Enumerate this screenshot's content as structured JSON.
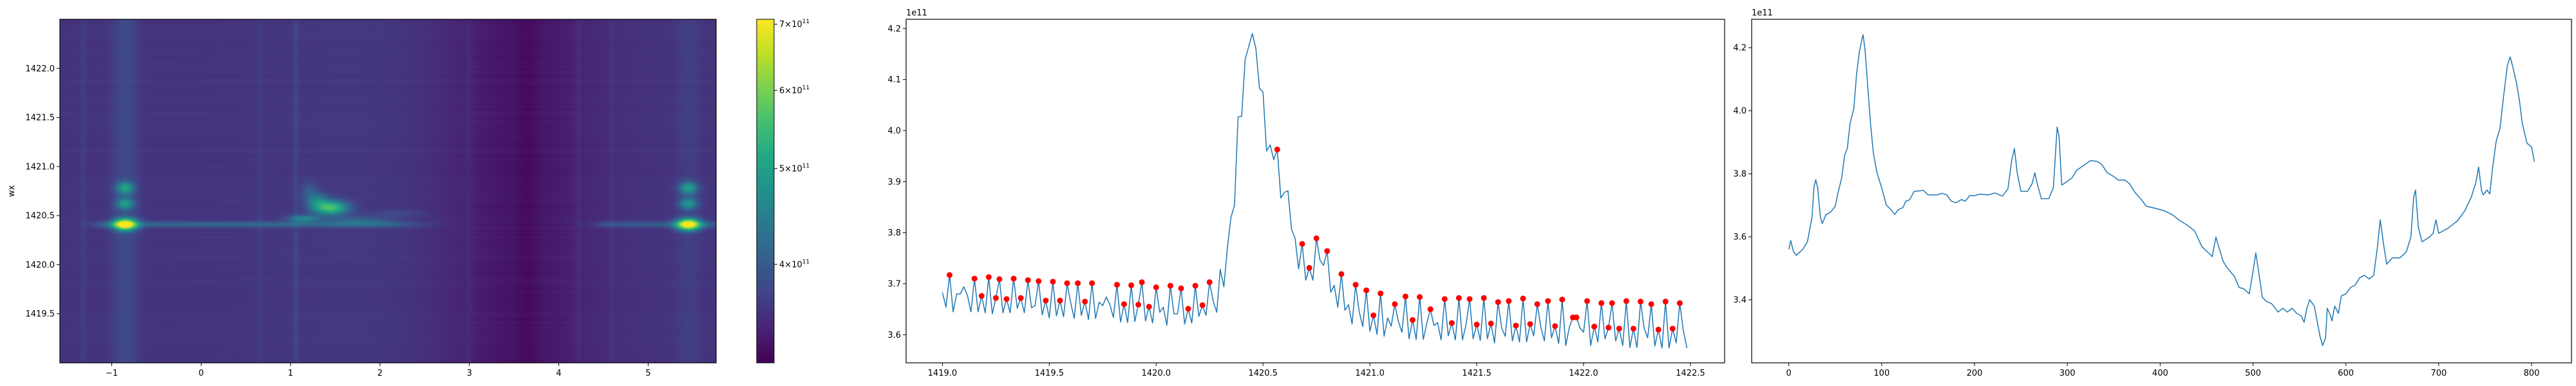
{
  "chart_data": [
    {
      "type": "heatmap",
      "ylabel": "wx",
      "xlabel": "",
      "xlim": [
        -1.58,
        5.76
      ],
      "ylim": [
        1419.0,
        1422.5
      ],
      "xticks": [
        {
          "v": -1,
          "label": "−1"
        },
        {
          "v": 0,
          "label": "0"
        },
        {
          "v": 1,
          "label": "1"
        },
        {
          "v": 2,
          "label": "2"
        },
        {
          "v": 3,
          "label": "3"
        },
        {
          "v": 4,
          "label": "4"
        },
        {
          "v": 5,
          "label": "5"
        }
      ],
      "yticks": [
        {
          "v": 1419.5,
          "label": "1419.5"
        },
        {
          "v": 1420.0,
          "label": "1420.0"
        },
        {
          "v": 1420.5,
          "label": "1420.5"
        },
        {
          "v": 1421.0,
          "label": "1421.0"
        },
        {
          "v": 1421.5,
          "label": "1421.5"
        },
        {
          "v": 1422.0,
          "label": "1422.0"
        }
      ],
      "colorbar": {
        "scale": "log",
        "range": [
          318000000000.0,
          708000000000.0
        ],
        "ticks": [
          {
            "v": 400000000000.0,
            "mant": "4",
            "base": "10",
            "exp": "11"
          },
          {
            "v": 500000000000.0,
            "mant": "5",
            "base": "10",
            "exp": "11"
          },
          {
            "v": 600000000000.0,
            "mant": "6",
            "base": "10",
            "exp": "11"
          },
          {
            "v": 700000000000.0,
            "mant": "7",
            "base": "10",
            "exp": "11"
          }
        ],
        "colormap": "viridis",
        "stops": [
          "#440154",
          "#482475",
          "#414487",
          "#355f8d",
          "#2a788e",
          "#21918c",
          "#22a884",
          "#44bf70",
          "#7ad151",
          "#bddf26",
          "#fde725"
        ]
      },
      "heatmap_features": {
        "base": 358000000000.0,
        "broad_bands": [
          {
            "x": 3.55,
            "width": 0.6,
            "amp": -26000000000.0
          },
          {
            "x": 3.65,
            "width": 0.08,
            "amp": -7000000000.0
          },
          {
            "x": 1.8,
            "width": 0.9,
            "amp": 4000000000.0
          }
        ],
        "vertical_lines": [
          {
            "x": -0.85,
            "width": 0.1,
            "amp": 22000000000.0
          },
          {
            "x": -1.32,
            "width": 0.03,
            "amp": 8000000000.0
          },
          {
            "x": 0.65,
            "width": 0.025,
            "amp": 7000000000.0
          },
          {
            "x": 1.06,
            "width": 0.025,
            "amp": 12000000000.0
          },
          {
            "x": 3.0,
            "width": 0.025,
            "amp": 7000000000.0
          },
          {
            "x": 4.22,
            "width": 0.025,
            "amp": 8000000000.0
          },
          {
            "x": 4.6,
            "width": 0.025,
            "amp": 6000000000.0
          },
          {
            "x": 5.45,
            "width": 0.1,
            "amp": 10000000000.0
          }
        ],
        "horizontal_lines": [
          {
            "y": 1420.41,
            "x_from": -1.0,
            "x_to": 2.0,
            "width": 0.02,
            "amp": 55000000000.0
          },
          {
            "y": 1420.41,
            "x_from": 4.6,
            "x_to": 5.76,
            "width": 0.02,
            "amp": 45000000000.0
          }
        ],
        "spots": [
          {
            "x": -0.85,
            "y": 1420.41,
            "sx": 0.09,
            "sy": 0.04,
            "amp": 360000000000.0
          },
          {
            "x": -0.85,
            "y": 1420.62,
            "sx": 0.07,
            "sy": 0.04,
            "amp": 120000000000.0
          },
          {
            "x": -0.85,
            "y": 1420.78,
            "sx": 0.07,
            "sy": 0.045,
            "amp": 130000000000.0
          },
          {
            "x": 5.45,
            "y": 1420.41,
            "sx": 0.09,
            "sy": 0.04,
            "amp": 360000000000.0
          },
          {
            "x": 5.45,
            "y": 1420.62,
            "sx": 0.07,
            "sy": 0.04,
            "amp": 120000000000.0
          },
          {
            "x": 5.45,
            "y": 1420.78,
            "sx": 0.07,
            "sy": 0.045,
            "amp": 130000000000.0
          },
          {
            "x": 1.45,
            "y": 1420.58,
            "sx": 0.13,
            "sy": 0.05,
            "amp": 200000000000.0
          },
          {
            "x": 1.3,
            "y": 1420.65,
            "sx": 0.08,
            "sy": 0.06,
            "amp": 80000000000.0
          },
          {
            "x": 1.15,
            "y": 1420.47,
            "sx": 0.12,
            "sy": 0.025,
            "amp": 100000000000.0
          },
          {
            "x": 1.75,
            "y": 1420.45,
            "sx": 0.25,
            "sy": 0.03,
            "amp": 50000000000.0
          },
          {
            "x": 1.2,
            "y": 1420.75,
            "sx": 0.06,
            "sy": 0.07,
            "amp": 35000000000.0
          },
          {
            "x": 2.2,
            "y": 1420.52,
            "sx": 0.2,
            "sy": 0.03,
            "amp": 20000000000.0
          }
        ]
      }
    },
    {
      "type": "line",
      "offset_text": "1e11",
      "xlim": [
        1418.83,
        1422.66
      ],
      "ylim": [
        3.545,
        4.218
      ],
      "x_start": 1419.0,
      "x_step": 0.0166667,
      "y": [
        3.683,
        3.654,
        3.717,
        3.645,
        3.68,
        3.68,
        3.694,
        3.678,
        3.645,
        3.71,
        3.645,
        3.676,
        3.643,
        3.713,
        3.641,
        3.672,
        3.709,
        3.643,
        3.67,
        3.643,
        3.71,
        3.652,
        3.672,
        3.643,
        3.707,
        3.653,
        3.657,
        3.705,
        3.639,
        3.667,
        3.633,
        3.704,
        3.637,
        3.667,
        3.635,
        3.701,
        3.663,
        3.632,
        3.701,
        3.638,
        3.665,
        3.63,
        3.701,
        3.632,
        3.664,
        3.657,
        3.674,
        3.659,
        3.634,
        3.698,
        3.625,
        3.66,
        3.624,
        3.697,
        3.626,
        3.659,
        3.703,
        3.627,
        3.655,
        3.623,
        3.693,
        3.644,
        3.654,
        3.619,
        3.696,
        3.641,
        3.641,
        3.691,
        3.621,
        3.651,
        3.623,
        3.696,
        3.636,
        3.658,
        3.638,
        3.703,
        3.666,
        3.644,
        3.728,
        3.694,
        3.77,
        3.83,
        3.853,
        4.027,
        4.028,
        4.14,
        4.165,
        4.19,
        4.161,
        4.083,
        4.075,
        3.96,
        3.972,
        3.943,
        3.963,
        3.868,
        3.879,
        3.882,
        3.807,
        3.789,
        3.729,
        3.778,
        3.707,
        3.731,
        3.707,
        3.789,
        3.746,
        3.736,
        3.764,
        3.683,
        3.697,
        3.654,
        3.719,
        3.648,
        3.659,
        3.621,
        3.698,
        3.646,
        3.616,
        3.687,
        3.607,
        3.638,
        3.601,
        3.681,
        3.597,
        3.633,
        3.617,
        3.66,
        3.626,
        3.605,
        3.675,
        3.592,
        3.629,
        3.591,
        3.674,
        3.591,
        3.623,
        3.65,
        3.618,
        3.624,
        3.59,
        3.67,
        3.598,
        3.623,
        3.59,
        3.672,
        3.59,
        3.62,
        3.67,
        3.592,
        3.62,
        3.589,
        3.672,
        3.592,
        3.622,
        3.584,
        3.664,
        3.613,
        3.597,
        3.666,
        3.588,
        3.618,
        3.586,
        3.671,
        3.586,
        3.621,
        3.598,
        3.66,
        3.615,
        3.588,
        3.666,
        3.594,
        3.617,
        3.583,
        3.669,
        3.579,
        3.615,
        3.634,
        3.634,
        3.613,
        3.605,
        3.666,
        3.579,
        3.616,
        3.586,
        3.662,
        3.592,
        3.614,
        3.662,
        3.588,
        3.612,
        3.579,
        3.666,
        3.575,
        3.612,
        3.575,
        3.665,
        3.613,
        3.594,
        3.66,
        3.578,
        3.61,
        3.574,
        3.665,
        3.574,
        3.612,
        3.584,
        3.662,
        3.609,
        3.574
      ],
      "peak_indices": [
        2,
        9,
        11,
        13,
        15,
        16,
        18,
        20,
        22,
        24,
        27,
        29,
        31,
        33,
        35,
        38,
        40,
        42,
        49,
        51,
        53,
        55,
        56,
        58,
        60,
        64,
        67,
        69,
        71,
        73,
        75,
        94,
        101,
        103,
        105,
        108,
        112,
        116,
        119,
        121,
        123,
        127,
        130,
        132,
        134,
        137,
        141,
        143,
        145,
        148,
        150,
        152,
        154,
        156,
        159,
        161,
        163,
        165,
        167,
        170,
        172,
        174,
        177,
        178,
        181,
        183,
        185,
        187,
        188,
        190,
        192,
        194,
        196,
        199,
        201,
        203,
        205,
        207
      ],
      "line_color": "#1f77b4",
      "marker_color": "#ff0000",
      "xticks": [
        {
          "v": 1419.0,
          "label": "1419.0"
        },
        {
          "v": 1419.5,
          "label": "1419.5"
        },
        {
          "v": 1420.0,
          "label": "1420.0"
        },
        {
          "v": 1420.5,
          "label": "1420.5"
        },
        {
          "v": 1421.0,
          "label": "1421.0"
        },
        {
          "v": 1421.5,
          "label": "1421.5"
        },
        {
          "v": 1422.0,
          "label": "1422.0"
        },
        {
          "v": 1422.5,
          "label": "1422.5"
        }
      ],
      "yticks": [
        {
          "v": 3.6,
          "label": "3.6"
        },
        {
          "v": 3.7,
          "label": "3.7"
        },
        {
          "v": 3.8,
          "label": "3.8"
        },
        {
          "v": 3.9,
          "label": "3.9"
        },
        {
          "v": 4.0,
          "label": "4.0"
        },
        {
          "v": 4.1,
          "label": "4.1"
        },
        {
          "v": 4.2,
          "label": "4.2"
        }
      ]
    },
    {
      "type": "line",
      "offset_text": "1e11",
      "xlim": [
        -40,
        843
      ],
      "ylim": [
        3.2,
        4.29
      ],
      "x": [
        0,
        2,
        5,
        8,
        15,
        20,
        25,
        27,
        29,
        31,
        34,
        36,
        40,
        45,
        50,
        53,
        57,
        60,
        63,
        66,
        70,
        73,
        76,
        79,
        80,
        82,
        85,
        88,
        91,
        95,
        100,
        105,
        110,
        114,
        118,
        123,
        126,
        130,
        135,
        145,
        150,
        160,
        165,
        170,
        175,
        180,
        186,
        190,
        195,
        200,
        205,
        215,
        222,
        230,
        236,
        240,
        243,
        246,
        250,
        257,
        262,
        265,
        268,
        272,
        280,
        285,
        289,
        291,
        294,
        300,
        305,
        310,
        318,
        325,
        332,
        337,
        343,
        350,
        355,
        362,
        367,
        373,
        380,
        385,
        395,
        405,
        413,
        420,
        430,
        437,
        445,
        452,
        456,
        460,
        463,
        468,
        472,
        480,
        485,
        490,
        496,
        500,
        503,
        506,
        510,
        515,
        520,
        527,
        532,
        537,
        542,
        547,
        552,
        555,
        558,
        561,
        566,
        570,
        572,
        575,
        578,
        580,
        583,
        585,
        588,
        592,
        595,
        600,
        605,
        610,
        615,
        620,
        625,
        630,
        634,
        637,
        641,
        644,
        650,
        658,
        665,
        670,
        673,
        675,
        678,
        682,
        690,
        694,
        697,
        700,
        710,
        720,
        728,
        735,
        740,
        743,
        746,
        748,
        752,
        755,
        758,
        762,
        766,
        770,
        774,
        777,
        780,
        784,
        787,
        790,
        795,
        800,
        803
      ],
      "y": [
        3.56,
        3.588,
        3.553,
        3.541,
        3.56,
        3.584,
        3.662,
        3.756,
        3.781,
        3.756,
        3.662,
        3.642,
        3.67,
        3.678,
        3.697,
        3.74,
        3.787,
        3.858,
        3.881,
        3.96,
        4.007,
        4.116,
        4.187,
        4.23,
        4.241,
        4.195,
        4.077,
        3.96,
        3.866,
        3.803,
        3.756,
        3.701,
        3.686,
        3.671,
        3.686,
        3.693,
        3.713,
        3.717,
        3.744,
        3.747,
        3.733,
        3.733,
        3.738,
        3.733,
        3.713,
        3.708,
        3.718,
        3.713,
        3.731,
        3.73,
        3.735,
        3.733,
        3.739,
        3.729,
        3.752,
        3.842,
        3.88,
        3.803,
        3.744,
        3.744,
        3.768,
        3.803,
        3.764,
        3.721,
        3.721,
        3.756,
        3.948,
        3.92,
        3.764,
        3.776,
        3.787,
        3.811,
        3.827,
        3.842,
        3.839,
        3.83,
        3.803,
        3.791,
        3.78,
        3.78,
        3.768,
        3.74,
        3.717,
        3.697,
        3.69,
        3.682,
        3.67,
        3.654,
        3.635,
        3.619,
        3.568,
        3.549,
        3.537,
        3.599,
        3.568,
        3.521,
        3.502,
        3.474,
        3.439,
        3.435,
        3.419,
        3.49,
        3.549,
        3.49,
        3.408,
        3.394,
        3.388,
        3.361,
        3.373,
        3.361,
        3.373,
        3.357,
        3.349,
        3.329,
        3.373,
        3.4,
        3.38,
        3.318,
        3.286,
        3.255,
        3.278,
        3.373,
        3.353,
        3.333,
        3.38,
        3.357,
        3.412,
        3.419,
        3.439,
        3.447,
        3.47,
        3.478,
        3.466,
        3.478,
        3.568,
        3.654,
        3.568,
        3.513,
        3.533,
        3.533,
        3.552,
        3.599,
        3.725,
        3.748,
        3.631,
        3.584,
        3.599,
        3.611,
        3.654,
        3.611,
        3.627,
        3.65,
        3.682,
        3.725,
        3.772,
        3.821,
        3.748,
        3.733,
        3.748,
        3.736,
        3.819,
        3.905,
        3.944,
        4.05,
        4.144,
        4.171,
        4.136,
        4.085,
        4.03,
        3.96,
        3.897,
        3.885,
        3.838
      ],
      "line_color": "#1f77b4",
      "xticks": [
        {
          "v": 0,
          "label": "0"
        },
        {
          "v": 100,
          "label": "100"
        },
        {
          "v": 200,
          "label": "200"
        },
        {
          "v": 300,
          "label": "300"
        },
        {
          "v": 400,
          "label": "400"
        },
        {
          "v": 500,
          "label": "500"
        },
        {
          "v": 600,
          "label": "600"
        },
        {
          "v": 700,
          "label": "700"
        },
        {
          "v": 800,
          "label": "800"
        }
      ],
      "yticks": [
        {
          "v": 3.4,
          "label": "3.4"
        },
        {
          "v": 3.6,
          "label": "3.6"
        },
        {
          "v": 3.8,
          "label": "3.8"
        },
        {
          "v": 4.0,
          "label": "4.0"
        },
        {
          "v": 4.2,
          "label": "4.2"
        }
      ]
    }
  ]
}
